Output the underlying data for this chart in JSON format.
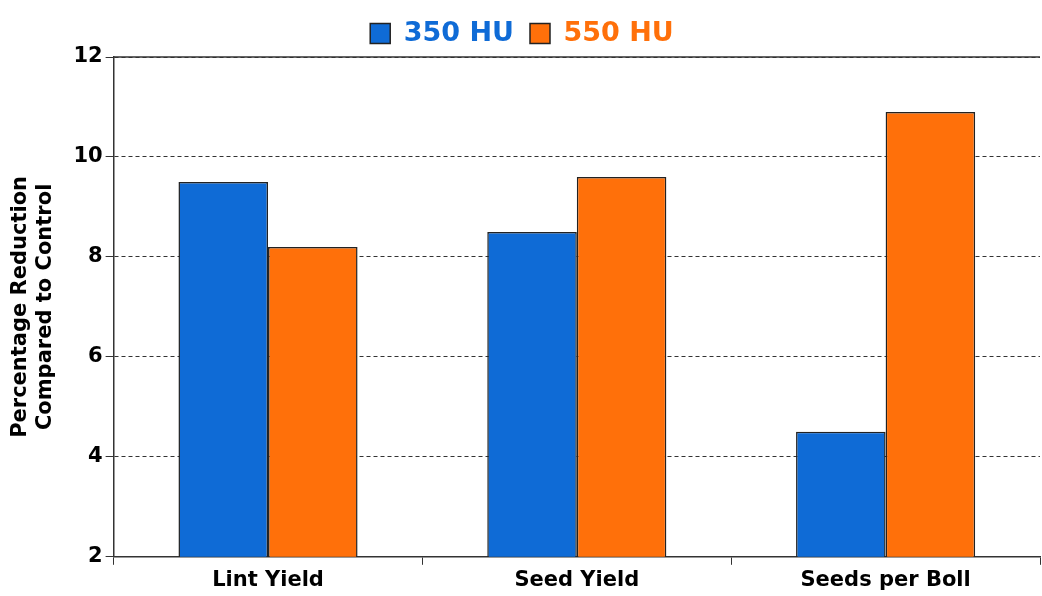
{
  "chart_data": {
    "type": "bar",
    "ylabel": "Percentage Reduction\nCompared to Control",
    "categories": [
      "Lint Yield",
      "Seed Yield",
      "Seeds per Boll"
    ],
    "series": [
      {
        "name": "350 HU",
        "color": "#0f6bd6",
        "values": [
          9.5,
          8.5,
          4.5
        ]
      },
      {
        "name": "550 HU",
        "color": "#ff700a",
        "values": [
          8.2,
          9.6,
          10.9
        ]
      }
    ],
    "ylim": [
      2,
      12
    ],
    "yticks": [
      2,
      4,
      6,
      8,
      10,
      12
    ],
    "grid": "y",
    "legend": "top"
  }
}
